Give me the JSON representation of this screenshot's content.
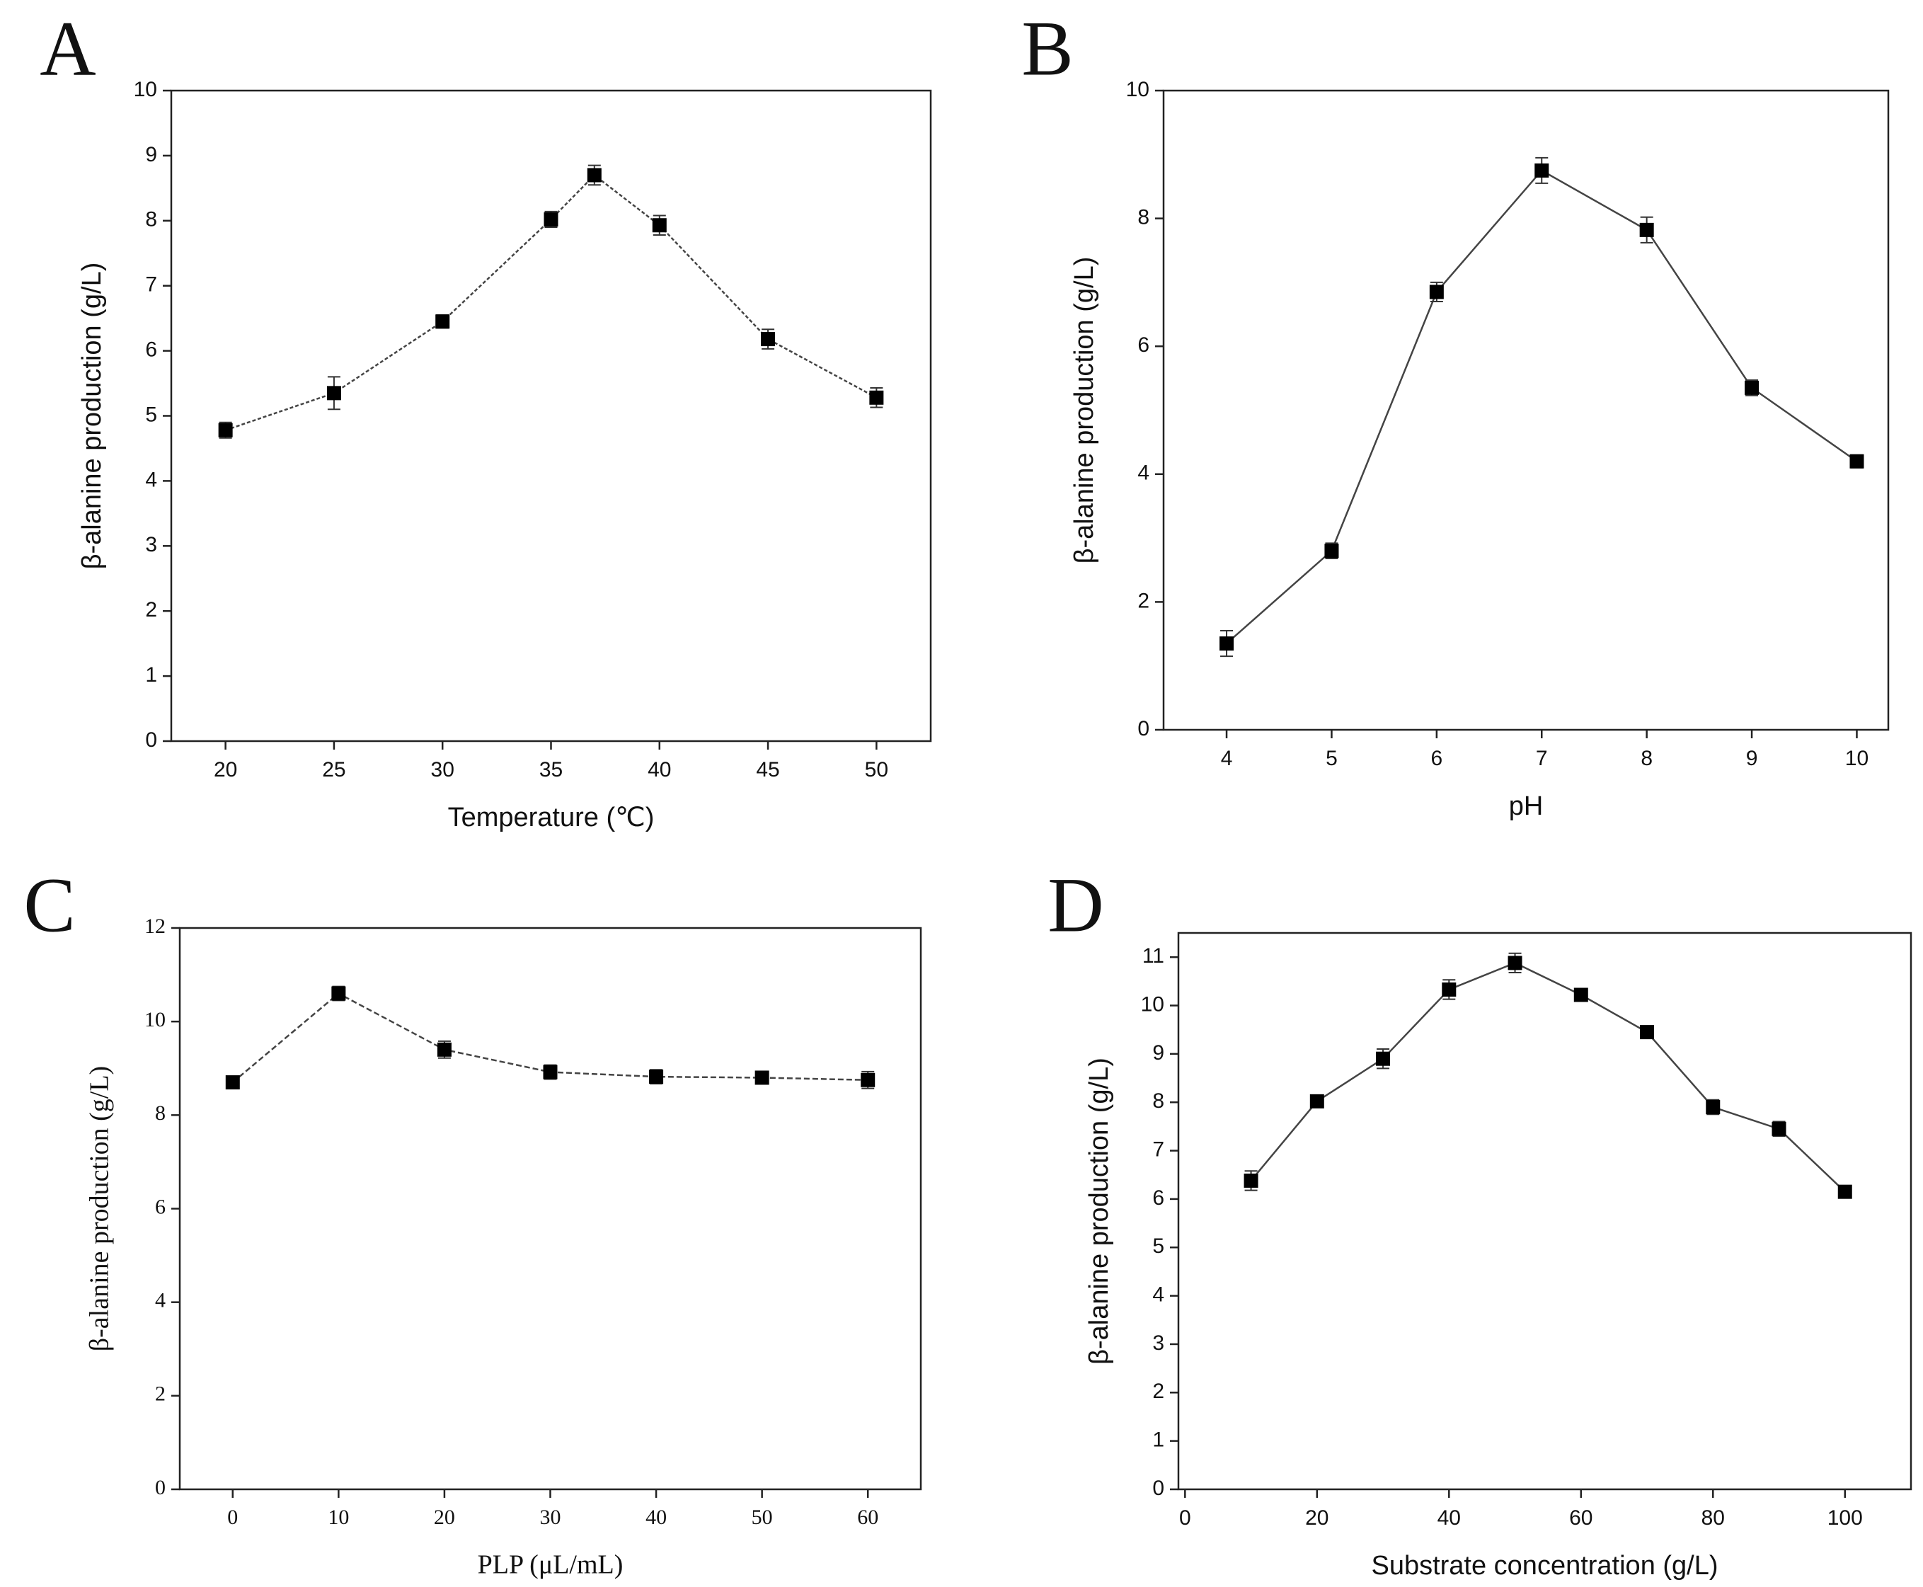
{
  "chart_data": [
    {
      "type": "line",
      "panel": "A",
      "xlabel": "Temperature (℃)",
      "ylabel": "β-alanine production (g/L)",
      "x": [
        20,
        25,
        30,
        35,
        37,
        40,
        45,
        50
      ],
      "series": [
        {
          "color": "#000000",
          "values": [
            4.78,
            5.35,
            6.45,
            8.02,
            8.7,
            7.93,
            6.18,
            5.28
          ],
          "errors": [
            0.12,
            0.25,
            0.1,
            0.12,
            0.15,
            0.15,
            0.15,
            0.15
          ]
        }
      ],
      "xlim": [
        17.5,
        52.5
      ],
      "xticks": [
        20,
        25,
        30,
        35,
        40,
        45,
        50
      ],
      "ylim": [
        0,
        10
      ],
      "yticks": [
        0,
        1,
        2,
        3,
        4,
        5,
        6,
        7,
        8,
        9,
        10
      ]
    },
    {
      "type": "line",
      "panel": "B",
      "xlabel": "pH",
      "ylabel": "β-alanine production (g/L)",
      "x": [
        4,
        5,
        6,
        7,
        8,
        9,
        10
      ],
      "series": [
        {
          "color": "#000000",
          "values": [
            1.35,
            2.8,
            6.85,
            8.75,
            7.82,
            5.35,
            4.2
          ],
          "errors": [
            0.2,
            0.12,
            0.15,
            0.2,
            0.2,
            0.12,
            0.1
          ]
        }
      ],
      "xlim": [
        3.4,
        10.3
      ],
      "xticks": [
        4,
        5,
        6,
        7,
        8,
        9,
        10
      ],
      "ylim": [
        0,
        10
      ],
      "yticks": [
        0,
        2,
        4,
        6,
        8,
        10
      ]
    },
    {
      "type": "line",
      "panel": "C",
      "xlabel": "PLP (μL/mL)",
      "ylabel": "β-alanine production (g/L)",
      "x": [
        0,
        10,
        20,
        30,
        40,
        50,
        60
      ],
      "series": [
        {
          "color": "#000000",
          "values": [
            8.7,
            10.6,
            9.4,
            8.92,
            8.82,
            8.8,
            8.75
          ],
          "errors": [
            0.12,
            0.15,
            0.18,
            0.15,
            0.15,
            0.1,
            0.18
          ]
        }
      ],
      "xlim": [
        -5,
        65
      ],
      "xticks": [
        0,
        10,
        20,
        30,
        40,
        50,
        60
      ],
      "ylim": [
        0,
        12
      ],
      "yticks": [
        0,
        2,
        4,
        6,
        8,
        10,
        12
      ]
    },
    {
      "type": "line",
      "panel": "D",
      "xlabel": "Substrate concentration (g/L)",
      "ylabel": "β-alanine production (g/L)",
      "x": [
        10,
        20,
        30,
        40,
        50,
        60,
        70,
        80,
        90,
        100
      ],
      "series": [
        {
          "color": "#000000",
          "values": [
            6.38,
            8.02,
            8.9,
            10.33,
            10.88,
            10.22,
            9.45,
            7.9,
            7.45,
            6.15
          ],
          "errors": [
            0.2,
            0.1,
            0.2,
            0.2,
            0.2,
            0.1,
            0.1,
            0.15,
            0.15,
            0.12
          ]
        }
      ],
      "xlim": [
        -1,
        110
      ],
      "xticks": [
        0,
        20,
        40,
        60,
        80,
        100
      ],
      "ylim": [
        0,
        11.5
      ],
      "yticks": [
        0,
        1,
        2,
        3,
        4,
        5,
        6,
        7,
        8,
        9,
        10,
        11
      ]
    }
  ]
}
